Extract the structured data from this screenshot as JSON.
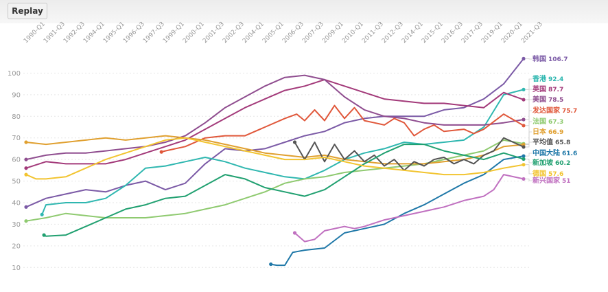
{
  "toolbar": {
    "replay_label": "Replay"
  },
  "chart_data": {
    "type": "line",
    "x": [
      "1990-Q1",
      "1991-Q3",
      "1992-Q3",
      "1994-Q1",
      "1995-Q1",
      "1996-Q3",
      "1997-Q3",
      "1999-Q1",
      "2000-Q1",
      "2001-Q3",
      "2002-Q3",
      "2004-Q1",
      "2005-Q1",
      "2006-Q3",
      "2007-Q3",
      "2009-Q1",
      "2010-Q1",
      "2011-Q3",
      "2012-Q3",
      "2014-Q1",
      "2015-Q1",
      "2016-Q3",
      "2017-Q3",
      "2019-Q1",
      "2020-Q1",
      "2021-Q3"
    ],
    "ylim": [
      5,
      110
    ],
    "yticks": [
      10,
      20,
      30,
      40,
      50,
      60,
      70,
      80,
      90,
      100
    ],
    "grid": true,
    "series": [
      {
        "name": "韩国",
        "value": "106.7",
        "color": "#7b5aa6",
        "points": [
          [
            0,
            38
          ],
          [
            1,
            42
          ],
          [
            2,
            44
          ],
          [
            3,
            46
          ],
          [
            4,
            45
          ],
          [
            5,
            48
          ],
          [
            6,
            50
          ],
          [
            7,
            46
          ],
          [
            8,
            49
          ],
          [
            9,
            58
          ],
          [
            10,
            65
          ],
          [
            11,
            64
          ],
          [
            12,
            65
          ],
          [
            13,
            68
          ],
          [
            14,
            71
          ],
          [
            15,
            73
          ],
          [
            16,
            77
          ],
          [
            17,
            79
          ],
          [
            18,
            80
          ],
          [
            19,
            80
          ],
          [
            20,
            80
          ],
          [
            21,
            83
          ],
          [
            22,
            84
          ],
          [
            23,
            88
          ],
          [
            24,
            95
          ],
          [
            25,
            106.7
          ]
        ]
      },
      {
        "name": "香港",
        "value": "92.4",
        "color": "#2fb7b0",
        "points": [
          [
            0.8,
            34.5
          ],
          [
            1,
            39
          ],
          [
            2,
            40
          ],
          [
            3,
            40
          ],
          [
            4,
            42
          ],
          [
            5,
            48
          ],
          [
            6,
            56
          ],
          [
            7,
            57
          ],
          [
            8,
            59
          ],
          [
            9,
            61
          ],
          [
            10,
            59
          ],
          [
            11,
            56
          ],
          [
            12,
            54
          ],
          [
            13,
            52
          ],
          [
            14,
            51
          ],
          [
            15,
            55
          ],
          [
            16,
            60
          ],
          [
            17,
            63
          ],
          [
            18,
            65
          ],
          [
            19,
            68
          ],
          [
            20,
            67
          ],
          [
            21,
            68
          ],
          [
            22,
            69
          ],
          [
            23,
            75
          ],
          [
            24,
            90
          ],
          [
            25,
            92.4
          ]
        ]
      },
      {
        "name": "英国",
        "value": "87.7",
        "color": "#a33a7a",
        "points": [
          [
            0,
            56
          ],
          [
            1,
            59
          ],
          [
            2,
            58
          ],
          [
            3,
            58
          ],
          [
            4,
            58
          ],
          [
            5,
            60
          ],
          [
            6,
            63
          ],
          [
            7,
            66
          ],
          [
            8,
            69
          ],
          [
            9,
            74
          ],
          [
            10,
            79
          ],
          [
            11,
            84
          ],
          [
            12,
            88
          ],
          [
            13,
            92
          ],
          [
            14,
            94
          ],
          [
            15,
            97
          ],
          [
            16,
            94
          ],
          [
            17,
            91
          ],
          [
            18,
            88
          ],
          [
            19,
            87
          ],
          [
            20,
            86
          ],
          [
            21,
            86
          ],
          [
            22,
            85
          ],
          [
            23,
            84
          ],
          [
            24,
            91
          ],
          [
            25,
            87.7
          ]
        ]
      },
      {
        "name": "美国",
        "value": "78.5",
        "color": "#8f4d8f",
        "points": [
          [
            0,
            60
          ],
          [
            1,
            62
          ],
          [
            2,
            63
          ],
          [
            3,
            63
          ],
          [
            4,
            64
          ],
          [
            5,
            65
          ],
          [
            6,
            66
          ],
          [
            7,
            68
          ],
          [
            8,
            71
          ],
          [
            9,
            77
          ],
          [
            10,
            84
          ],
          [
            11,
            89
          ],
          [
            12,
            94
          ],
          [
            13,
            98
          ],
          [
            14,
            99
          ],
          [
            15,
            97
          ],
          [
            16,
            89
          ],
          [
            17,
            83
          ],
          [
            18,
            80
          ],
          [
            19,
            79
          ],
          [
            20,
            77
          ],
          [
            21,
            76
          ],
          [
            22,
            76
          ],
          [
            23,
            76
          ],
          [
            24,
            77
          ],
          [
            25,
            78.5
          ]
        ]
      },
      {
        "name": "发达国家",
        "value": "75.7",
        "color": "#e0573a",
        "points": [
          [
            6.8,
            63.5
          ],
          [
            7,
            64
          ],
          [
            8,
            66
          ],
          [
            9,
            70
          ],
          [
            10,
            71
          ],
          [
            11,
            71
          ],
          [
            12,
            75
          ],
          [
            13,
            79
          ],
          [
            13.6,
            81
          ],
          [
            14,
            78
          ],
          [
            14.5,
            83
          ],
          [
            15,
            78
          ],
          [
            15.5,
            85
          ],
          [
            16,
            79
          ],
          [
            16.5,
            84
          ],
          [
            17,
            78
          ],
          [
            17.5,
            77
          ],
          [
            18,
            76
          ],
          [
            18.5,
            79
          ],
          [
            19,
            77
          ],
          [
            19.5,
            71
          ],
          [
            20,
            74
          ],
          [
            20.5,
            76
          ],
          [
            21,
            73
          ],
          [
            22,
            74
          ],
          [
            22.5,
            72
          ],
          [
            23,
            74
          ],
          [
            24,
            81
          ],
          [
            25,
            75.7
          ]
        ]
      },
      {
        "name": "法国",
        "value": "67.3",
        "color": "#8fca70",
        "points": [
          [
            0,
            31.5
          ],
          [
            1,
            33
          ],
          [
            2,
            35
          ],
          [
            3,
            34
          ],
          [
            4,
            33
          ],
          [
            5,
            33
          ],
          [
            6,
            33
          ],
          [
            7,
            34
          ],
          [
            8,
            35
          ],
          [
            9,
            37
          ],
          [
            10,
            39
          ],
          [
            11,
            42
          ],
          [
            12,
            45
          ],
          [
            13,
            49
          ],
          [
            14,
            51
          ],
          [
            15,
            52
          ],
          [
            16,
            54
          ],
          [
            17,
            55
          ],
          [
            18,
            56
          ],
          [
            19,
            57
          ],
          [
            20,
            58
          ],
          [
            21,
            60
          ],
          [
            22,
            62
          ],
          [
            23,
            64
          ],
          [
            24,
            69
          ],
          [
            25,
            67.3
          ]
        ]
      },
      {
        "name": "日本",
        "value": "66.9",
        "color": "#e0a030",
        "points": [
          [
            0,
            68
          ],
          [
            1,
            67
          ],
          [
            2,
            68
          ],
          [
            3,
            69
          ],
          [
            4,
            70
          ],
          [
            5,
            69
          ],
          [
            6,
            70
          ],
          [
            7,
            71
          ],
          [
            8,
            70
          ],
          [
            9,
            69
          ],
          [
            10,
            67
          ],
          [
            11,
            65
          ],
          [
            12,
            63
          ],
          [
            13,
            62
          ],
          [
            14,
            61
          ],
          [
            15,
            62
          ],
          [
            16,
            60
          ],
          [
            17,
            59
          ],
          [
            18,
            58
          ],
          [
            19,
            58
          ],
          [
            20,
            58
          ],
          [
            21,
            59
          ],
          [
            22,
            60
          ],
          [
            23,
            62
          ],
          [
            24,
            66
          ],
          [
            25,
            66.9
          ]
        ]
      },
      {
        "name": "平均值",
        "value": "65.8",
        "color": "#555555",
        "points": [
          [
            13.5,
            68
          ],
          [
            14,
            60
          ],
          [
            14.5,
            68
          ],
          [
            15,
            59
          ],
          [
            15.5,
            67
          ],
          [
            16,
            60
          ],
          [
            16.5,
            64
          ],
          [
            17,
            59
          ],
          [
            17.5,
            62
          ],
          [
            18,
            57
          ],
          [
            18.5,
            60
          ],
          [
            19,
            55
          ],
          [
            19.5,
            59
          ],
          [
            20,
            57
          ],
          [
            20.5,
            60
          ],
          [
            21,
            61
          ],
          [
            21.5,
            58
          ],
          [
            22,
            60
          ],
          [
            22.5,
            58
          ],
          [
            23,
            62
          ],
          [
            23.5,
            64
          ],
          [
            24,
            70
          ],
          [
            25,
            65.8
          ]
        ]
      },
      {
        "name": "中国大陆",
        "value": "61.6",
        "color": "#1f78a8",
        "points": [
          [
            12.3,
            11.5
          ],
          [
            12.6,
            11
          ],
          [
            13,
            11
          ],
          [
            13.4,
            17
          ],
          [
            14,
            18
          ],
          [
            15,
            19
          ],
          [
            16,
            26
          ],
          [
            17,
            28
          ],
          [
            18,
            30
          ],
          [
            19,
            35
          ],
          [
            20,
            39
          ],
          [
            21,
            44
          ],
          [
            22,
            49
          ],
          [
            23,
            53
          ],
          [
            24,
            60
          ],
          [
            25,
            61.6
          ]
        ]
      },
      {
        "name": "新加坡",
        "value": "60.2",
        "color": "#20a070",
        "points": [
          [
            0.9,
            25
          ],
          [
            1,
            24.5
          ],
          [
            2,
            25
          ],
          [
            3,
            29
          ],
          [
            4,
            33
          ],
          [
            5,
            37
          ],
          [
            6,
            39
          ],
          [
            7,
            42
          ],
          [
            8,
            43
          ],
          [
            9,
            48
          ],
          [
            10,
            53
          ],
          [
            11,
            51
          ],
          [
            12,
            47
          ],
          [
            13,
            45
          ],
          [
            14,
            43
          ],
          [
            15,
            46
          ],
          [
            16,
            52
          ],
          [
            17,
            58
          ],
          [
            18,
            63
          ],
          [
            19,
            67
          ],
          [
            20,
            67
          ],
          [
            21,
            64
          ],
          [
            22,
            62
          ],
          [
            23,
            60
          ],
          [
            24,
            63
          ],
          [
            25,
            60.2
          ]
        ]
      },
      {
        "name": "德国",
        "value": "57.6",
        "color": "#f2c430",
        "points": [
          [
            0,
            53
          ],
          [
            0.5,
            51
          ],
          [
            1,
            51
          ],
          [
            2,
            52
          ],
          [
            3,
            56
          ],
          [
            4,
            60
          ],
          [
            5,
            63
          ],
          [
            6,
            66
          ],
          [
            7,
            69
          ],
          [
            8,
            70
          ],
          [
            9,
            68
          ],
          [
            10,
            66
          ],
          [
            11,
            64
          ],
          [
            12,
            62
          ],
          [
            13,
            60
          ],
          [
            14,
            60
          ],
          [
            15,
            61
          ],
          [
            16,
            59
          ],
          [
            17,
            57
          ],
          [
            18,
            56
          ],
          [
            19,
            55
          ],
          [
            20,
            54
          ],
          [
            21,
            53
          ],
          [
            22,
            53
          ],
          [
            23,
            54
          ],
          [
            24,
            56
          ],
          [
            25,
            57.6
          ]
        ]
      },
      {
        "name": "新兴国家",
        "value": "51",
        "color": "#c070c0",
        "points": [
          [
            13.5,
            26
          ],
          [
            14,
            22
          ],
          [
            14.5,
            23
          ],
          [
            15,
            27
          ],
          [
            16,
            29
          ],
          [
            16.5,
            28
          ],
          [
            17,
            29
          ],
          [
            18,
            32
          ],
          [
            19,
            34
          ],
          [
            20,
            36
          ],
          [
            21,
            38
          ],
          [
            22,
            41
          ],
          [
            23,
            43
          ],
          [
            23.5,
            46
          ],
          [
            24,
            53
          ],
          [
            25,
            51
          ]
        ]
      }
    ]
  }
}
